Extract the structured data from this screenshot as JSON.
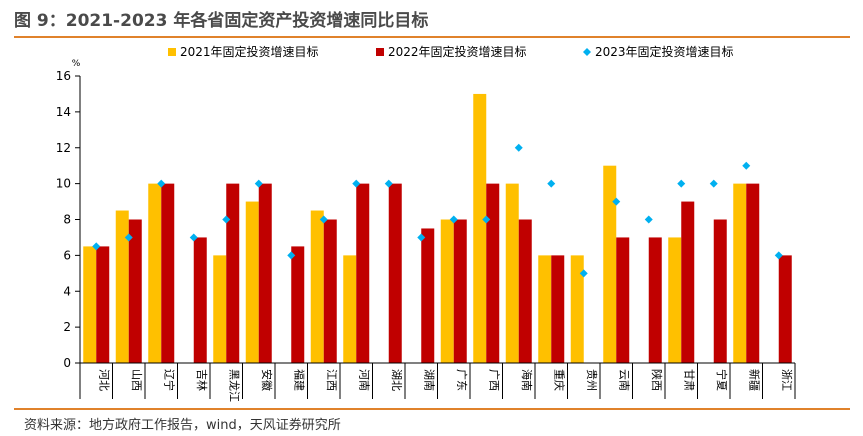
{
  "title": "图 9：2021-2023 年各省固定资产投资增速同比目标",
  "source": "资料来源：地方政府工作报告，wind，天风证券研究所",
  "colors": {
    "s2021": "#ffc000",
    "s2022": "#c00000",
    "s2023": "#00b0f0",
    "accent": "#e0822b"
  },
  "chart_data": {
    "type": "bar",
    "title": "",
    "ylabel": "%",
    "ylim": [
      0,
      16
    ],
    "yticks": [
      0,
      2,
      4,
      6,
      8,
      10,
      12,
      14,
      16
    ],
    "legend_position": "top",
    "categories": [
      "河北",
      "山西",
      "辽宁",
      "吉林",
      "黑龙江",
      "安徽",
      "福建",
      "江西",
      "河南",
      "湖北",
      "湖南",
      "广东",
      "广西",
      "海南",
      "重庆",
      "贵州",
      "云南",
      "陕西",
      "甘肃",
      "宁夏",
      "新疆",
      "浙江"
    ],
    "series": [
      {
        "name": "2021年固定投资增速目标",
        "type": "bar",
        "values": [
          6.5,
          8.5,
          10,
          null,
          6,
          9,
          null,
          8.5,
          6,
          null,
          null,
          8,
          15,
          10,
          6,
          6,
          11,
          null,
          7,
          null,
          10,
          null
        ]
      },
      {
        "name": "2022年固定投资增速目标",
        "type": "bar",
        "values": [
          6.5,
          8,
          10,
          7,
          10,
          10,
          6.5,
          8,
          10,
          10,
          7.5,
          8,
          10,
          8,
          6,
          null,
          7,
          7,
          9,
          8,
          10,
          6
        ]
      },
      {
        "name": "2023年固定投资增速目标",
        "type": "scatter",
        "marker": "diamond",
        "values": [
          6.5,
          7,
          10,
          7,
          8,
          10,
          6,
          8,
          10,
          10,
          7,
          8,
          8,
          12,
          10,
          5,
          9,
          8,
          10,
          10,
          11,
          6
        ]
      }
    ]
  }
}
